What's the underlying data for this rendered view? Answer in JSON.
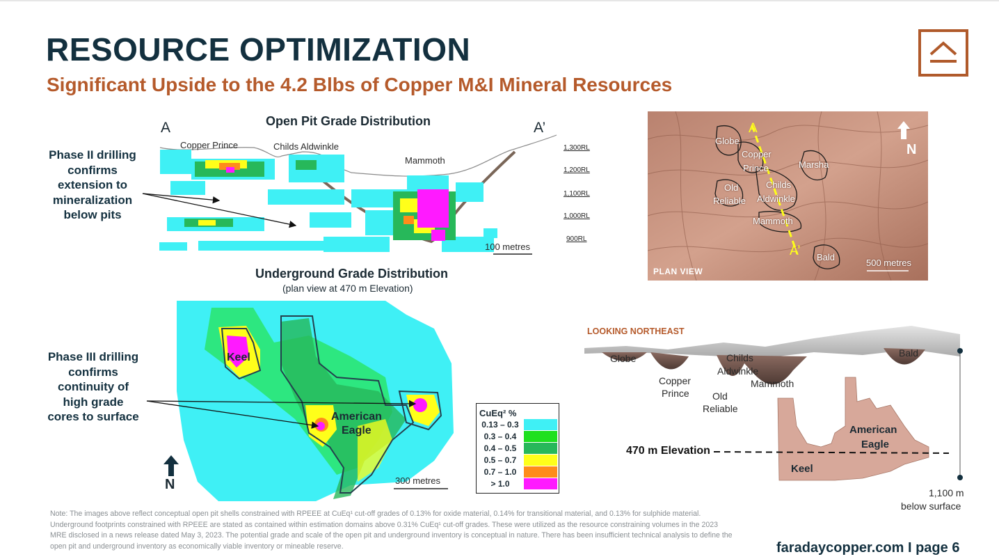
{
  "header": {
    "title": "RESOURCE OPTIMIZATION",
    "subtitle": "Significant Upside to the 4.2 Blbs of Copper M&I Mineral Resources"
  },
  "open_pit": {
    "title": "Open Pit Grade Distribution",
    "section_start": "A",
    "section_end": "A’",
    "pits": [
      "Copper Prince",
      "Childs Aldwinkle",
      "Mammoth"
    ],
    "rl_labels": [
      "1,300RL",
      "1,200RL",
      "1,100RL",
      "1,000RL",
      "900RL"
    ],
    "scale": "100 metres"
  },
  "callouts": {
    "phase2": "Phase II drilling confirms extension to mineralization below pits",
    "phase3": "Phase III drilling confirms continuity of high grade cores to surface"
  },
  "underground": {
    "title": "Underground Grade Distribution",
    "caption": "(plan view at 470 m Elevation)",
    "zones": [
      "Keel",
      "American",
      "Eagle"
    ],
    "north": "N",
    "scale": "300 metres"
  },
  "legend": {
    "title": "CuEq² %",
    "rows": [
      {
        "label": "0.13 – 0.3",
        "color": "#3ff0f5"
      },
      {
        "label": "0.3 – 0.4",
        "color": "#1fe01f"
      },
      {
        "label": "0.4 – 0.5",
        "color": "#27b85a"
      },
      {
        "label": "0.5 – 0.7",
        "color": "#ffff1a"
      },
      {
        "label": "0.7 – 1.0",
        "color": "#ff8c1a"
      },
      {
        "label": "> 1.0",
        "color": "#ff1aff"
      }
    ]
  },
  "plan_view": {
    "corner_label": "PLAN VIEW",
    "north": "N",
    "scale": "500 metres",
    "section_a": "A",
    "section_a_prime": "A’",
    "deposits": [
      "Globe",
      "Copper",
      "Prince",
      "Marsha",
      "Old",
      "Reliable",
      "Childs",
      "Aldwinkle",
      "Mammoth",
      "Bald"
    ]
  },
  "northeast": {
    "heading": "LOOKING NORTHEAST",
    "labels": [
      "Globe",
      "Childs",
      "Aldwinkle",
      "Mammoth",
      "Copper",
      "Prince",
      "Old",
      "Reliable",
      "Bald",
      "American",
      "Eagle",
      "Keel"
    ],
    "elevation": "470 m Elevation",
    "depth_value": "1,100 m",
    "depth_caption": "below surface"
  },
  "note": "Note: The images above reflect conceptual open pit shells constrained with RPEEE at CuEq¹ cut-off grades of 0.13% for oxide material, 0.14% for transitional material, and 0.13% for sulphide material. Underground footprints constrained with RPEEE are stated as contained within estimation domains above 0.31% CuEq¹ cut-off grades. These were utilized as the resource constraining volumes in the 2023 MRE disclosed in a news release dated May 3, 2023. The potential grade and scale of the open pit and underground inventory is conceptual in nature. There has been insufficient technical analysis to define the open pit and underground inventory as economically viable inventory or mineable reserve.",
  "footer": "faradaycopper.com I page 6"
}
